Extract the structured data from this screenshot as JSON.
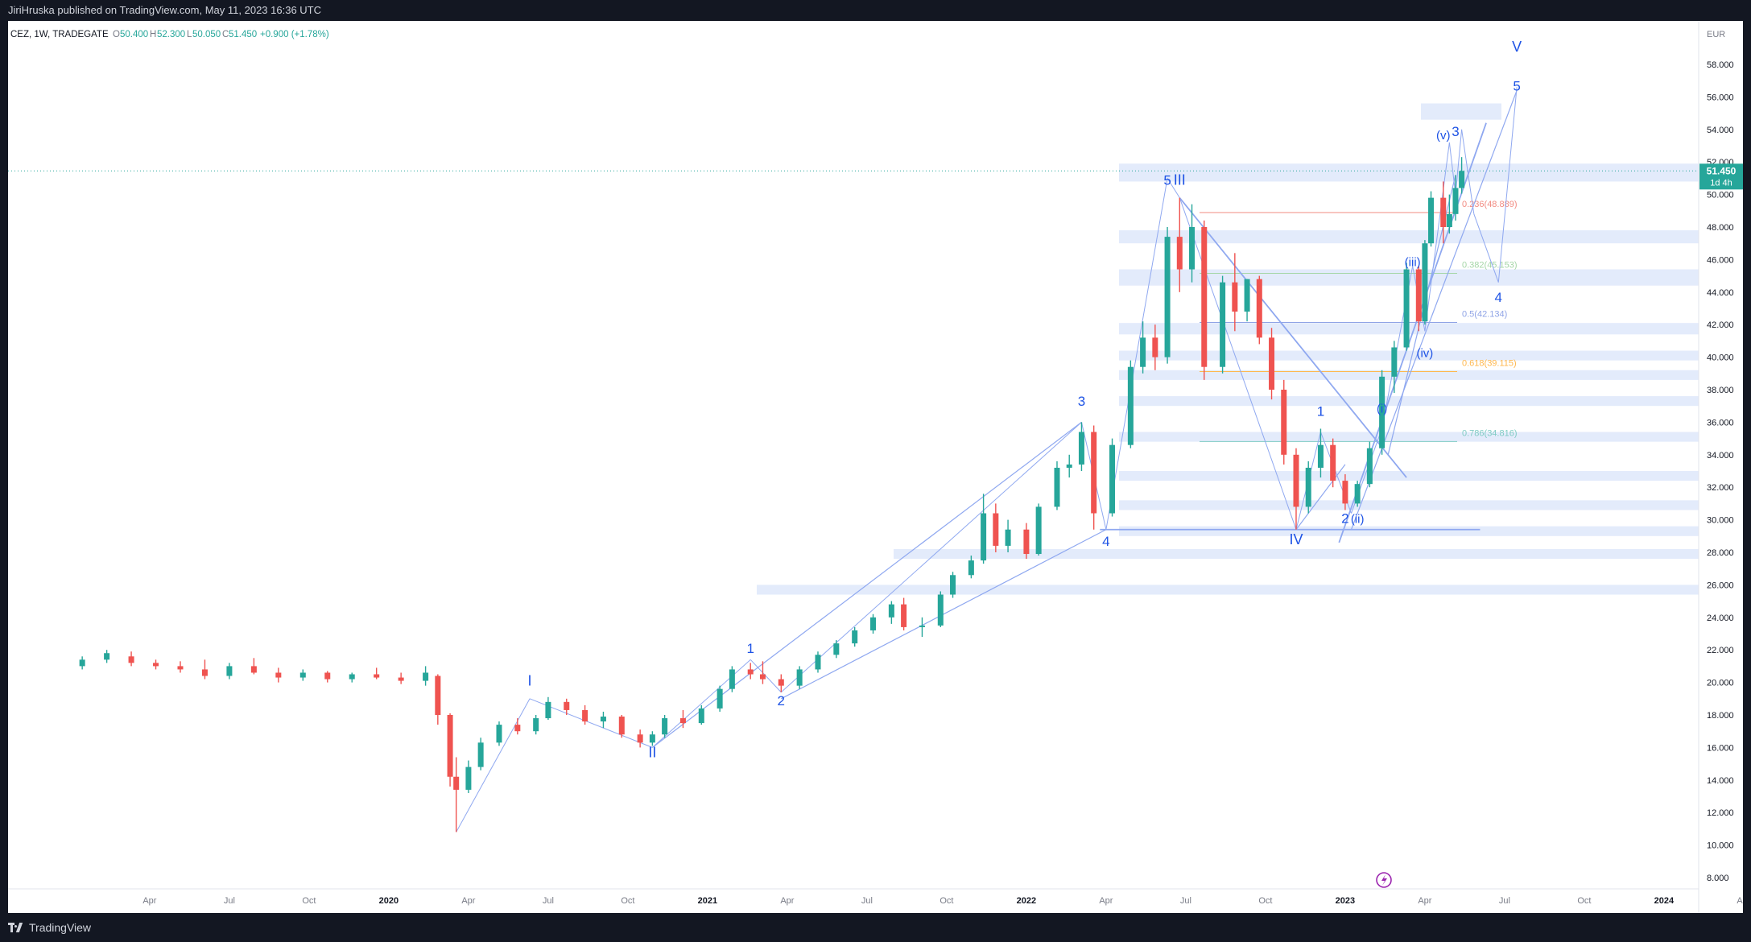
{
  "publish_info": "JiriHruska published on TradingView.com, May 11, 2023 16:36 UTC",
  "footer_brand": "TradingView",
  "legend": {
    "symbol": "CEZ, 1W, TRADEGATE",
    "o_label": "O",
    "o_value": "50.400",
    "h_label": "H",
    "h_value": "52.300",
    "l_label": "L",
    "l_value": "50.050",
    "c_label": "C",
    "c_value": "51.450",
    "change": "+0.900 (+1.78%)"
  },
  "currency": "EUR",
  "price_badge": {
    "price": "51.450",
    "countdown": "1d 4h"
  },
  "colors": {
    "up": "#26a69a",
    "down": "#ef5350",
    "wave": "#1e53e5",
    "line": "#8fa8f0",
    "zone": "#e3ebfb"
  },
  "y_ticks": [
    "8.000",
    "10.000",
    "12.000",
    "14.000",
    "16.000",
    "18.000",
    "20.000",
    "22.000",
    "24.000",
    "26.000",
    "28.000",
    "30.000",
    "32.000",
    "34.000",
    "36.000",
    "38.000",
    "40.000",
    "42.000",
    "44.000",
    "46.000",
    "48.000",
    "50.000",
    "52.000",
    "54.000",
    "56.000",
    "58.000"
  ],
  "x_ticks": [
    "Apr",
    "Jul",
    "Oct",
    "2020",
    "Apr",
    "Jul",
    "Oct",
    "2021",
    "Apr",
    "Jul",
    "Oct",
    "2022",
    "Apr",
    "Jul",
    "Oct",
    "2023",
    "Apr",
    "Jul",
    "Oct",
    "2024",
    "Apr"
  ],
  "fib_levels": [
    {
      "label": "0.236(48.889)",
      "color": "#f28b82"
    },
    {
      "label": "0.382(45.153)",
      "color": "#a5d6a7"
    },
    {
      "label": "0.5(42.134)",
      "color": "#90a4e6"
    },
    {
      "label": "0.618(39.115)",
      "color": "#ffb74d"
    },
    {
      "label": "0.786(34.816)",
      "color": "#80cbc4"
    }
  ],
  "wave_labels": [
    "I",
    "II",
    "III",
    "IV",
    "V",
    "1",
    "2",
    "3",
    "4",
    "5",
    "(i)",
    "(ii)",
    "(iii)",
    "(iv)",
    "(v)"
  ],
  "chart_data": {
    "type": "candlestick",
    "title": "CEZ, 1W, TRADEGATE",
    "xlabel": "",
    "ylabel": "",
    "currency": "EUR",
    "ylim": [
      7,
      60
    ],
    "x_range": [
      "2019-01",
      "2024-05"
    ],
    "last_price": 51.45,
    "candles": [
      {
        "d": "2019-01-14",
        "o": 21.0,
        "h": 21.6,
        "l": 20.8,
        "c": 21.4
      },
      {
        "d": "2019-02-11",
        "o": 21.4,
        "h": 22.0,
        "l": 21.2,
        "c": 21.8
      },
      {
        "d": "2019-03-11",
        "o": 21.6,
        "h": 21.9,
        "l": 21.0,
        "c": 21.2
      },
      {
        "d": "2019-04-08",
        "o": 21.2,
        "h": 21.4,
        "l": 20.8,
        "c": 21.0
      },
      {
        "d": "2019-05-06",
        "o": 21.0,
        "h": 21.3,
        "l": 20.6,
        "c": 20.8
      },
      {
        "d": "2019-06-03",
        "o": 20.8,
        "h": 21.4,
        "l": 20.2,
        "c": 20.4
      },
      {
        "d": "2019-07-01",
        "o": 20.4,
        "h": 21.2,
        "l": 20.2,
        "c": 21.0
      },
      {
        "d": "2019-07-29",
        "o": 21.0,
        "h": 21.5,
        "l": 20.5,
        "c": 20.6
      },
      {
        "d": "2019-08-26",
        "o": 20.6,
        "h": 20.9,
        "l": 20.0,
        "c": 20.3
      },
      {
        "d": "2019-09-23",
        "o": 20.3,
        "h": 20.8,
        "l": 20.1,
        "c": 20.6
      },
      {
        "d": "2019-10-21",
        "o": 20.6,
        "h": 20.7,
        "l": 20.0,
        "c": 20.2
      },
      {
        "d": "2019-11-18",
        "o": 20.2,
        "h": 20.6,
        "l": 20.0,
        "c": 20.5
      },
      {
        "d": "2019-12-16",
        "o": 20.5,
        "h": 20.9,
        "l": 20.2,
        "c": 20.3
      },
      {
        "d": "2020-01-13",
        "o": 20.3,
        "h": 20.6,
        "l": 19.9,
        "c": 20.1
      },
      {
        "d": "2020-02-10",
        "o": 20.1,
        "h": 21.0,
        "l": 19.8,
        "c": 20.6
      },
      {
        "d": "2020-02-24",
        "o": 20.4,
        "h": 20.5,
        "l": 17.4,
        "c": 18.0
      },
      {
        "d": "2020-03-09",
        "o": 18.0,
        "h": 18.1,
        "l": 13.6,
        "c": 14.2
      },
      {
        "d": "2020-03-16",
        "o": 14.2,
        "h": 15.4,
        "l": 10.8,
        "c": 13.4
      },
      {
        "d": "2020-03-30",
        "o": 13.4,
        "h": 15.2,
        "l": 13.2,
        "c": 14.8
      },
      {
        "d": "2020-04-13",
        "o": 14.8,
        "h": 16.6,
        "l": 14.6,
        "c": 16.3
      },
      {
        "d": "2020-05-04",
        "o": 16.3,
        "h": 17.6,
        "l": 16.1,
        "c": 17.4
      },
      {
        "d": "2020-05-25",
        "o": 17.4,
        "h": 17.8,
        "l": 16.8,
        "c": 17.0
      },
      {
        "d": "2020-06-15",
        "o": 17.0,
        "h": 18.0,
        "l": 16.8,
        "c": 17.8
      },
      {
        "d": "2020-06-29",
        "o": 17.8,
        "h": 19.1,
        "l": 17.7,
        "c": 18.8
      },
      {
        "d": "2020-07-20",
        "o": 18.8,
        "h": 19.0,
        "l": 18.0,
        "c": 18.3
      },
      {
        "d": "2020-08-10",
        "o": 18.3,
        "h": 18.6,
        "l": 17.4,
        "c": 17.6
      },
      {
        "d": "2020-08-31",
        "o": 17.6,
        "h": 18.2,
        "l": 17.2,
        "c": 17.9
      },
      {
        "d": "2020-09-21",
        "o": 17.9,
        "h": 18.0,
        "l": 16.6,
        "c": 16.8
      },
      {
        "d": "2020-10-12",
        "o": 16.8,
        "h": 17.1,
        "l": 16.0,
        "c": 16.3
      },
      {
        "d": "2020-10-26",
        "o": 16.3,
        "h": 17.0,
        "l": 16.1,
        "c": 16.8
      },
      {
        "d": "2020-11-09",
        "o": 16.8,
        "h": 18.0,
        "l": 16.6,
        "c": 17.8
      },
      {
        "d": "2020-11-30",
        "o": 17.8,
        "h": 18.3,
        "l": 17.2,
        "c": 17.5
      },
      {
        "d": "2020-12-21",
        "o": 17.5,
        "h": 18.6,
        "l": 17.4,
        "c": 18.4
      },
      {
        "d": "2021-01-11",
        "o": 18.4,
        "h": 19.8,
        "l": 18.2,
        "c": 19.6
      },
      {
        "d": "2021-01-25",
        "o": 19.6,
        "h": 21.0,
        "l": 19.4,
        "c": 20.8
      },
      {
        "d": "2021-02-15",
        "o": 20.8,
        "h": 21.2,
        "l": 20.2,
        "c": 20.5
      },
      {
        "d": "2021-03-01",
        "o": 20.5,
        "h": 21.3,
        "l": 19.9,
        "c": 20.2
      },
      {
        "d": "2021-03-22",
        "o": 20.2,
        "h": 20.5,
        "l": 19.4,
        "c": 19.8
      },
      {
        "d": "2021-04-12",
        "o": 19.8,
        "h": 21.0,
        "l": 19.6,
        "c": 20.8
      },
      {
        "d": "2021-05-03",
        "o": 20.8,
        "h": 21.9,
        "l": 20.6,
        "c": 21.7
      },
      {
        "d": "2021-05-24",
        "o": 21.7,
        "h": 22.6,
        "l": 21.5,
        "c": 22.4
      },
      {
        "d": "2021-06-14",
        "o": 22.4,
        "h": 23.4,
        "l": 22.2,
        "c": 23.2
      },
      {
        "d": "2021-07-05",
        "o": 23.2,
        "h": 24.2,
        "l": 23.0,
        "c": 24.0
      },
      {
        "d": "2021-07-26",
        "o": 24.0,
        "h": 25.0,
        "l": 23.6,
        "c": 24.8
      },
      {
        "d": "2021-08-09",
        "o": 24.8,
        "h": 25.2,
        "l": 23.2,
        "c": 23.4
      },
      {
        "d": "2021-08-30",
        "o": 23.4,
        "h": 24.0,
        "l": 22.8,
        "c": 23.5
      },
      {
        "d": "2021-09-20",
        "o": 23.5,
        "h": 25.6,
        "l": 23.4,
        "c": 25.4
      },
      {
        "d": "2021-10-04",
        "o": 25.4,
        "h": 26.8,
        "l": 25.2,
        "c": 26.6
      },
      {
        "d": "2021-10-25",
        "o": 26.6,
        "h": 27.8,
        "l": 26.4,
        "c": 27.5
      },
      {
        "d": "2021-11-08",
        "o": 27.5,
        "h": 31.6,
        "l": 27.3,
        "c": 30.4
      },
      {
        "d": "2021-11-22",
        "o": 30.4,
        "h": 31.0,
        "l": 28.0,
        "c": 28.4
      },
      {
        "d": "2021-12-06",
        "o": 28.4,
        "h": 30.0,
        "l": 28.0,
        "c": 29.4
      },
      {
        "d": "2021-12-27",
        "o": 29.4,
        "h": 29.8,
        "l": 27.6,
        "c": 27.9
      },
      {
        "d": "2022-01-10",
        "o": 27.9,
        "h": 31.0,
        "l": 27.8,
        "c": 30.8
      },
      {
        "d": "2022-01-31",
        "o": 30.8,
        "h": 33.6,
        "l": 30.6,
        "c": 33.2
      },
      {
        "d": "2022-02-14",
        "o": 33.2,
        "h": 34.0,
        "l": 32.6,
        "c": 33.4
      },
      {
        "d": "2022-02-28",
        "o": 33.4,
        "h": 36.0,
        "l": 33.0,
        "c": 35.4
      },
      {
        "d": "2022-03-14",
        "o": 35.4,
        "h": 35.8,
        "l": 29.4,
        "c": 30.4
      },
      {
        "d": "2022-04-04",
        "o": 30.4,
        "h": 35.0,
        "l": 30.2,
        "c": 34.6
      },
      {
        "d": "2022-04-25",
        "o": 34.6,
        "h": 39.8,
        "l": 34.4,
        "c": 39.4
      },
      {
        "d": "2022-05-09",
        "o": 39.4,
        "h": 42.2,
        "l": 39.0,
        "c": 41.2
      },
      {
        "d": "2022-05-23",
        "o": 41.2,
        "h": 42.0,
        "l": 39.2,
        "c": 40.0
      },
      {
        "d": "2022-06-06",
        "o": 40.0,
        "h": 48.0,
        "l": 39.6,
        "c": 47.4
      },
      {
        "d": "2022-06-20",
        "o": 47.4,
        "h": 49.8,
        "l": 44.0,
        "c": 45.4
      },
      {
        "d": "2022-07-04",
        "o": 45.4,
        "h": 49.4,
        "l": 44.6,
        "c": 48.0
      },
      {
        "d": "2022-07-18",
        "o": 48.0,
        "h": 48.4,
        "l": 38.6,
        "c": 39.4
      },
      {
        "d": "2022-08-08",
        "o": 39.4,
        "h": 45.0,
        "l": 39.0,
        "c": 44.6
      },
      {
        "d": "2022-08-22",
        "o": 44.6,
        "h": 46.4,
        "l": 41.6,
        "c": 42.8
      },
      {
        "d": "2022-09-05",
        "o": 42.8,
        "h": 44.8,
        "l": 42.2,
        "c": 44.8
      },
      {
        "d": "2022-09-19",
        "o": 44.8,
        "h": 45.0,
        "l": 40.8,
        "c": 41.2
      },
      {
        "d": "2022-10-03",
        "o": 41.2,
        "h": 41.8,
        "l": 37.4,
        "c": 38.0
      },
      {
        "d": "2022-10-17",
        "o": 38.0,
        "h": 38.6,
        "l": 33.4,
        "c": 34.0
      },
      {
        "d": "2022-10-31",
        "o": 34.0,
        "h": 34.4,
        "l": 29.4,
        "c": 30.8
      },
      {
        "d": "2022-11-14",
        "o": 30.8,
        "h": 33.6,
        "l": 30.4,
        "c": 33.2
      },
      {
        "d": "2022-11-28",
        "o": 33.2,
        "h": 35.6,
        "l": 32.6,
        "c": 34.6
      },
      {
        "d": "2022-12-12",
        "o": 34.6,
        "h": 35.0,
        "l": 32.0,
        "c": 32.4
      },
      {
        "d": "2022-12-26",
        "o": 32.4,
        "h": 32.8,
        "l": 30.6,
        "c": 31.0
      },
      {
        "d": "2023-01-09",
        "o": 31.0,
        "h": 32.4,
        "l": 30.8,
        "c": 32.2
      },
      {
        "d": "2023-01-23",
        "o": 32.2,
        "h": 34.8,
        "l": 32.0,
        "c": 34.4
      },
      {
        "d": "2023-02-06",
        "o": 34.4,
        "h": 39.2,
        "l": 34.0,
        "c": 38.8
      },
      {
        "d": "2023-02-20",
        "o": 38.8,
        "h": 41.0,
        "l": 37.8,
        "c": 40.6
      },
      {
        "d": "2023-03-06",
        "o": 40.6,
        "h": 45.8,
        "l": 40.4,
        "c": 45.4
      },
      {
        "d": "2023-03-20",
        "o": 45.4,
        "h": 45.6,
        "l": 41.6,
        "c": 42.2
      },
      {
        "d": "2023-03-27",
        "o": 42.2,
        "h": 47.2,
        "l": 42.0,
        "c": 47.0
      },
      {
        "d": "2023-04-03",
        "o": 47.0,
        "h": 50.2,
        "l": 46.8,
        "c": 49.8
      },
      {
        "d": "2023-04-17",
        "o": 49.8,
        "h": 50.8,
        "l": 47.0,
        "c": 48.0
      },
      {
        "d": "2023-04-24",
        "o": 48.0,
        "h": 50.0,
        "l": 47.6,
        "c": 48.8
      },
      {
        "d": "2023-05-01",
        "o": 48.8,
        "h": 51.2,
        "l": 48.4,
        "c": 50.4
      },
      {
        "d": "2023-05-08",
        "o": 50.4,
        "h": 52.3,
        "l": 50.05,
        "c": 51.45
      }
    ],
    "fibonacci": [
      {
        "ratio": 0.236,
        "price": 48.889
      },
      {
        "ratio": 0.382,
        "price": 45.153
      },
      {
        "ratio": 0.5,
        "price": 42.134
      },
      {
        "ratio": 0.618,
        "price": 39.115
      },
      {
        "ratio": 0.786,
        "price": 34.816
      }
    ],
    "support_zones": [
      {
        "from": 50.8,
        "to": 51.9
      },
      {
        "from": 47.0,
        "to": 47.8
      },
      {
        "from": 44.4,
        "to": 45.4
      },
      {
        "from": 41.4,
        "to": 42.1
      },
      {
        "from": 39.8,
        "to": 40.4
      },
      {
        "from": 38.6,
        "to": 39.2
      },
      {
        "from": 37.0,
        "to": 37.6
      },
      {
        "from": 34.8,
        "to": 35.4
      },
      {
        "from": 32.4,
        "to": 33.0
      },
      {
        "from": 30.6,
        "to": 31.2
      },
      {
        "from": 29.0,
        "to": 29.6
      },
      {
        "from": 27.6,
        "to": 28.2
      },
      {
        "from": 25.4,
        "to": 26.0
      },
      {
        "from": 54.6,
        "to": 55.6
      }
    ],
    "wave_points": [
      {
        "label": "I",
        "d": "2020-06-08",
        "price": 19.8
      },
      {
        "label": "II",
        "d": "2020-10-26",
        "price": 15.4
      },
      {
        "label": "1",
        "d": "2021-02-15",
        "price": 21.8
      },
      {
        "label": "2",
        "d": "2021-03-22",
        "price": 18.6
      },
      {
        "label": "3",
        "d": "2022-02-28",
        "price": 37.0
      },
      {
        "label": "4",
        "d": "2022-03-28",
        "price": 28.4
      },
      {
        "label": "5",
        "d": "2022-06-06",
        "price": 50.6
      },
      {
        "label": "III",
        "d": "2022-06-20",
        "price": 50.6
      },
      {
        "label": "IV",
        "d": "2022-10-31",
        "price": 28.5
      },
      {
        "label": "1",
        "d": "2022-11-28",
        "price": 36.4
      },
      {
        "label": "(i)",
        "d": "2023-02-06",
        "price": 36.6
      },
      {
        "label": "2",
        "d": "2022-12-26",
        "price": 29.8
      },
      {
        "label": "(ii)",
        "d": "2023-01-09",
        "price": 29.8
      },
      {
        "label": "(iii)",
        "d": "2023-03-13",
        "price": 45.6
      },
      {
        "label": "(iv)",
        "d": "2023-03-27",
        "price": 40.0
      },
      {
        "label": "(v)",
        "d": "2023-04-17",
        "price": 53.4
      },
      {
        "label": "3",
        "d": "2023-05-01",
        "price": 53.6
      },
      {
        "label": "4",
        "d": "2023-06-19",
        "price": 43.4
      },
      {
        "label": "5",
        "d": "2023-07-10",
        "price": 56.4
      },
      {
        "label": "V",
        "d": "2023-07-10",
        "price": 58.8
      }
    ]
  }
}
